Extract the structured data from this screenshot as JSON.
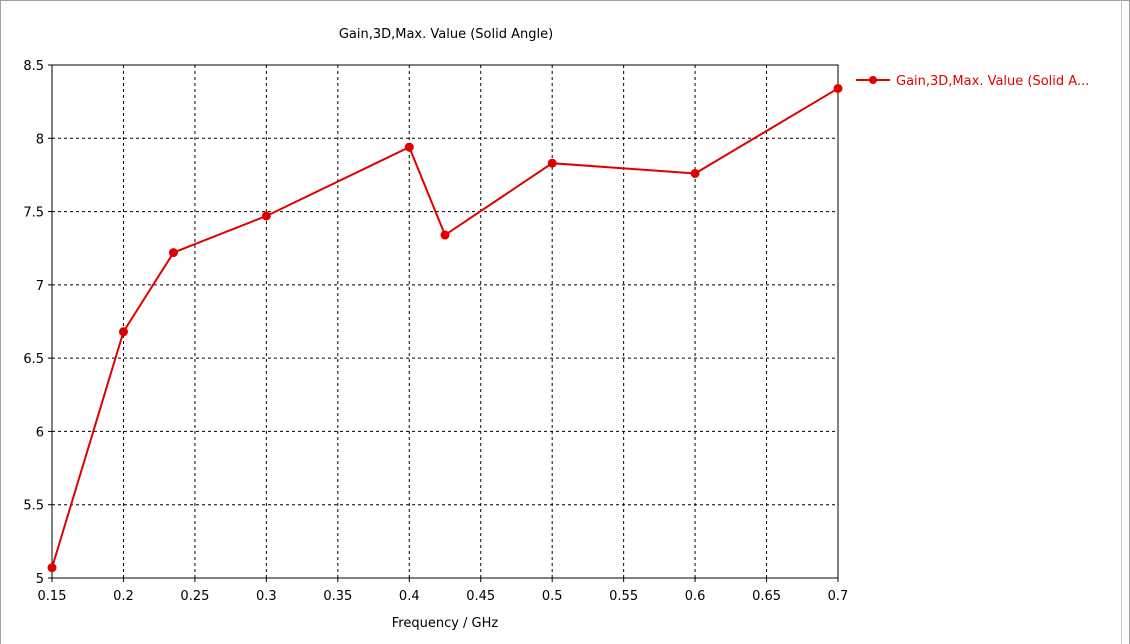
{
  "chart_data": {
    "type": "line",
    "title": "Gain,3D,Max. Value (Solid Angle)",
    "xlabel": "Frequency / GHz",
    "ylabel": "",
    "xlim": [
      0.15,
      0.7
    ],
    "ylim": [
      5,
      8.5
    ],
    "x_ticks": [
      "0.15",
      "0.2",
      "0.25",
      "0.3",
      "0.35",
      "0.4",
      "0.45",
      "0.5",
      "0.55",
      "0.6",
      "0.65",
      "0.7"
    ],
    "y_ticks": [
      "5",
      "5.5",
      "6",
      "6.5",
      "7",
      "7.5",
      "8",
      "8.5"
    ],
    "grid": true,
    "grid_style": "dashed",
    "legend_position": "right",
    "series": [
      {
        "name": "Gain,3D,Max. Value (Solid A...",
        "color": "#e00000",
        "marker": "circle",
        "x": [
          0.15,
          0.2,
          0.235,
          0.3,
          0.4,
          0.425,
          0.5,
          0.6,
          0.7
        ],
        "y": [
          5.07,
          6.68,
          7.22,
          7.47,
          7.94,
          7.34,
          7.83,
          7.76,
          8.34
        ]
      }
    ]
  }
}
